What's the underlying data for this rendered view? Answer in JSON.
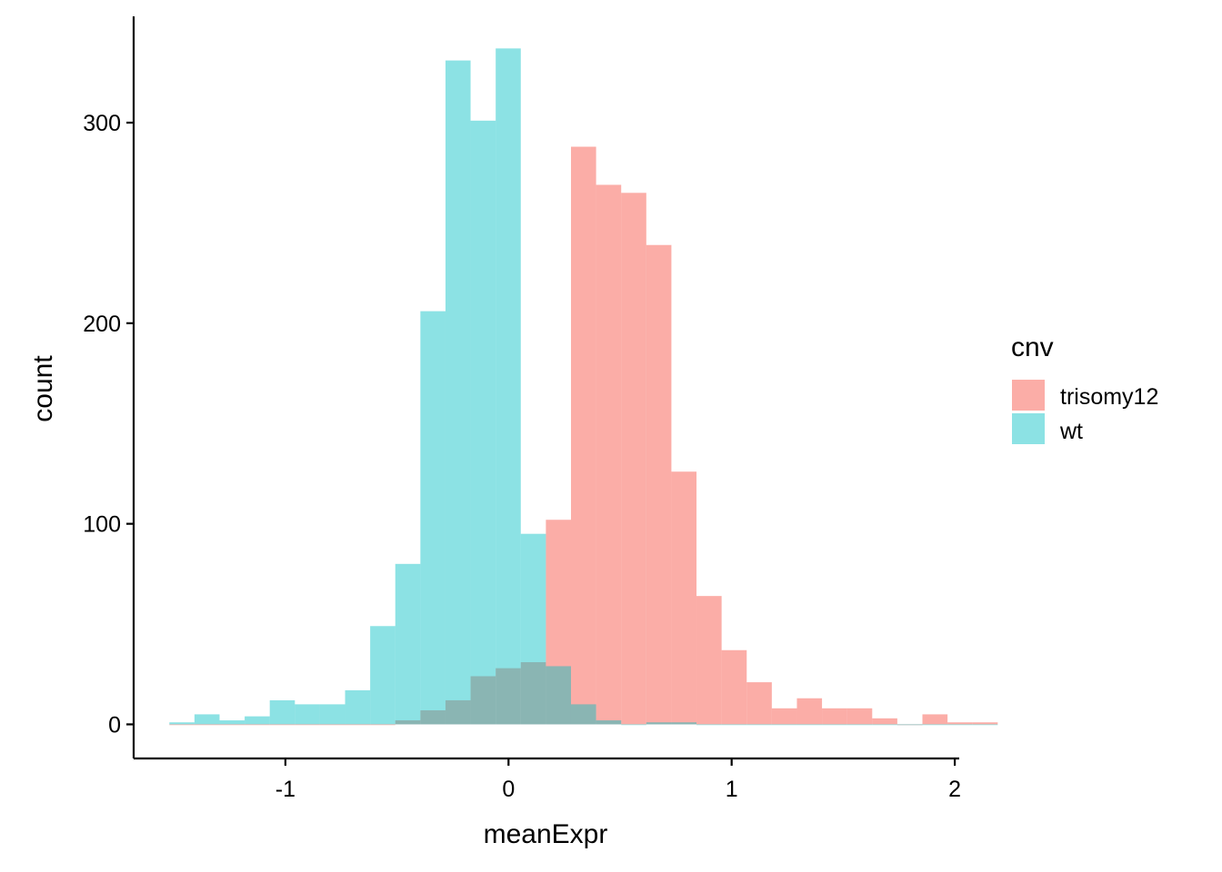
{
  "chart_data": {
    "type": "histogram",
    "xlabel": "meanExpr",
    "ylabel": "count",
    "xlim": [
      -1.68,
      2.02
    ],
    "ylim": [
      -17,
      353
    ],
    "x_ticks": [
      -1,
      0,
      1,
      2
    ],
    "y_ticks": [
      0,
      100,
      200,
      300
    ],
    "x_tick_labels": [
      "-1",
      "0",
      "1",
      "2"
    ],
    "y_tick_labels": [
      "0",
      "100",
      "200",
      "300"
    ],
    "bin_width": 0.1125,
    "bin_start": -1.52,
    "grid": false,
    "legend": {
      "title": "cnv",
      "position": "right",
      "entries": [
        {
          "label": "trisomy12",
          "color": "#F8766D"
        },
        {
          "label": "wt",
          "color": "#00BFC4"
        }
      ]
    },
    "fill_opacity": 0.6,
    "series": [
      {
        "name": "trisomy12",
        "color": "#F8766D",
        "values": [
          0,
          0,
          0,
          0,
          0,
          0,
          0,
          0,
          0,
          2,
          7,
          12,
          24,
          28,
          31,
          102,
          288,
          269,
          265,
          239,
          126,
          64,
          37,
          21,
          8,
          13,
          8,
          8,
          3,
          0,
          5,
          1,
          1
        ]
      },
      {
        "name": "wt",
        "color": "#00BFC4",
        "values": [
          1,
          5,
          2,
          4,
          12,
          10,
          10,
          17,
          49,
          80,
          206,
          331,
          301,
          337,
          95,
          29,
          10,
          2,
          0,
          1,
          1,
          0,
          0,
          0,
          0,
          0,
          0,
          0,
          0,
          0,
          0,
          0,
          0
        ]
      }
    ]
  }
}
